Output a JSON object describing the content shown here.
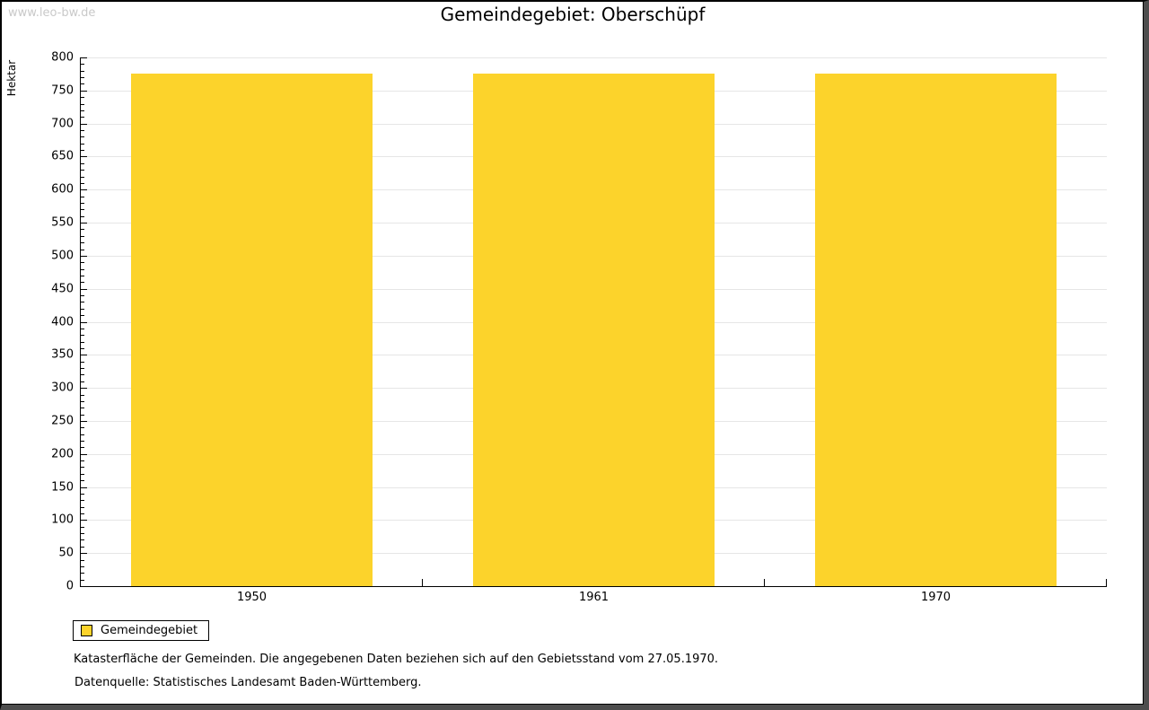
{
  "watermark": "www.leo-bw.de",
  "colors": {
    "bar": "#FCD32B",
    "gridline": "#e6e6e6",
    "axis": "#000000",
    "watermark": "#c9c9c9",
    "frame_shadow": "#4d4d4d"
  },
  "legend": {
    "label": "Gemeindegebiet",
    "position": "bottom-left"
  },
  "captions": {
    "line1": "Katasterfläche der Gemeinden. Die angegebenen Daten beziehen sich auf den Gebietsstand vom 27.05.1970.",
    "line2": "Datenquelle: Statistisches Landesamt Baden-Württemberg."
  },
  "chart_data": {
    "type": "bar",
    "title": "Gemeindegebiet: Oberschüpf",
    "categories": [
      "1950",
      "1961",
      "1970"
    ],
    "series": [
      {
        "name": "Gemeindegebiet",
        "values": [
          775,
          775,
          775
        ],
        "color": "#FCD32B"
      }
    ],
    "xlabel": "",
    "ylabel": "Hektar",
    "ylim": [
      0,
      800
    ],
    "ytick_major": 50,
    "ytick_minor": 10,
    "grid": true,
    "legend_position": "bottom-left",
    "bar_width_fraction": 0.705
  }
}
